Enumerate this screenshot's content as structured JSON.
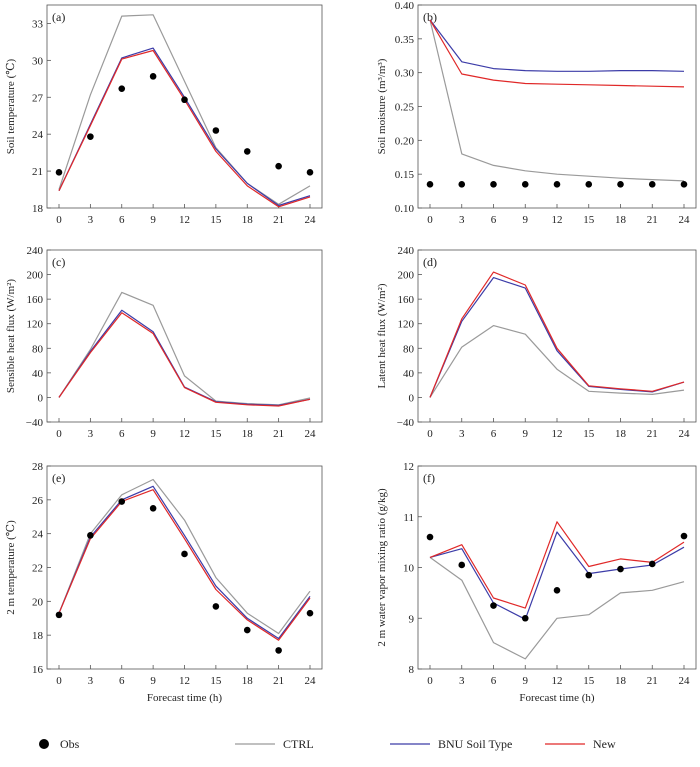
{
  "figure": {
    "xlabel": "Forecast time (h)",
    "legend": [
      {
        "label": "Obs",
        "color": "#000000",
        "kind": "dot"
      },
      {
        "label": "CTRL",
        "color": "#9a9a9a",
        "kind": "line"
      },
      {
        "label": "BNU Soil Type",
        "color": "#3c3ca8",
        "kind": "line"
      },
      {
        "label": "New",
        "color": "#e02828",
        "kind": "line"
      }
    ]
  },
  "chart_data": [
    {
      "type": "line",
      "panel": "(a)",
      "ylabel": "Soil temperature (℃)",
      "x": [
        0,
        3,
        6,
        9,
        12,
        15,
        18,
        21,
        24
      ],
      "xticks": [
        "0",
        "3",
        "6",
        "9",
        "12",
        "15",
        "18",
        "21",
        "24"
      ],
      "ylim": [
        18,
        34.5
      ],
      "yticks": [
        18,
        21,
        24,
        27,
        30,
        33
      ],
      "ytick_labels": [
        "18",
        "21",
        "24",
        "27",
        "30",
        "33"
      ],
      "obs": [
        20.9,
        23.8,
        27.7,
        28.7,
        26.8,
        24.3,
        22.6,
        21.4,
        20.9
      ],
      "series": [
        {
          "name": "CTRL",
          "color": "#9a9a9a",
          "values": [
            19.5,
            27.2,
            33.6,
            33.7,
            28.3,
            22.9,
            20.0,
            18.3,
            19.8
          ]
        },
        {
          "name": "BNU Soil Type",
          "color": "#3c3ca8",
          "values": [
            19.4,
            24.8,
            30.2,
            31.0,
            27.0,
            22.8,
            20.0,
            18.2,
            19.0
          ]
        },
        {
          "name": "New",
          "color": "#e02828",
          "values": [
            19.4,
            24.7,
            30.1,
            30.8,
            26.8,
            22.6,
            19.8,
            18.1,
            18.9
          ]
        }
      ]
    },
    {
      "type": "line",
      "panel": "(b)",
      "ylabel": "Soil moisture (m³/m³)",
      "x": [
        0,
        3,
        6,
        9,
        12,
        15,
        18,
        21,
        24
      ],
      "xticks": [
        "0",
        "3",
        "6",
        "9",
        "12",
        "15",
        "18",
        "21",
        "24"
      ],
      "ylim": [
        0.1,
        0.4
      ],
      "yticks": [
        0.1,
        0.15,
        0.2,
        0.25,
        0.3,
        0.35,
        0.4
      ],
      "ytick_labels": [
        "0.10",
        "0.15",
        "0.20",
        "0.25",
        "0.30",
        "0.35",
        "0.40"
      ],
      "obs": [
        0.135,
        0.135,
        0.135,
        0.135,
        0.135,
        0.135,
        0.135,
        0.135,
        0.135
      ],
      "series": [
        {
          "name": "CTRL",
          "color": "#9a9a9a",
          "values": [
            0.378,
            0.18,
            0.163,
            0.155,
            0.15,
            0.147,
            0.144,
            0.142,
            0.14
          ]
        },
        {
          "name": "BNU Soil Type",
          "color": "#3c3ca8",
          "values": [
            0.378,
            0.316,
            0.306,
            0.303,
            0.302,
            0.302,
            0.303,
            0.303,
            0.302
          ]
        },
        {
          "name": "New",
          "color": "#e02828",
          "values": [
            0.378,
            0.298,
            0.289,
            0.284,
            0.283,
            0.282,
            0.281,
            0.28,
            0.279
          ]
        }
      ]
    },
    {
      "type": "line",
      "panel": "(c)",
      "ylabel": "Sensible heat flux (W/m²)",
      "x": [
        0,
        3,
        6,
        9,
        12,
        15,
        18,
        21,
        24
      ],
      "xticks": [
        "0",
        "3",
        "6",
        "9",
        "12",
        "15",
        "18",
        "21",
        "24"
      ],
      "ylim": [
        -40,
        240
      ],
      "yticks": [
        -40,
        0,
        40,
        80,
        120,
        160,
        200,
        240
      ],
      "ytick_labels": [
        "−40",
        "0",
        "40",
        "80",
        "120",
        "160",
        "200",
        "240"
      ],
      "obs": [],
      "series": [
        {
          "name": "CTRL",
          "color": "#9a9a9a",
          "values": [
            0,
            78,
            171,
            150,
            35,
            -6,
            -10,
            -12,
            -1
          ]
        },
        {
          "name": "BNU Soil Type",
          "color": "#3c3ca8",
          "values": [
            0,
            75,
            142,
            107,
            17,
            -7,
            -11,
            -13,
            -3
          ]
        },
        {
          "name": "New",
          "color": "#e02828",
          "values": [
            0,
            73,
            138,
            104,
            16,
            -8,
            -12,
            -14,
            -3
          ]
        }
      ]
    },
    {
      "type": "line",
      "panel": "(d)",
      "ylabel": "Latent heat flux (W/m²)",
      "x": [
        0,
        3,
        6,
        9,
        12,
        15,
        18,
        21,
        24
      ],
      "xticks": [
        "0",
        "3",
        "6",
        "9",
        "12",
        "15",
        "18",
        "21",
        "24"
      ],
      "ylim": [
        -40,
        240
      ],
      "yticks": [
        -40,
        0,
        40,
        80,
        120,
        160,
        200,
        240
      ],
      "ytick_labels": [
        "−40",
        "0",
        "40",
        "80",
        "120",
        "160",
        "200",
        "240"
      ],
      "obs": [],
      "series": [
        {
          "name": "CTRL",
          "color": "#9a9a9a",
          "values": [
            0,
            82,
            117,
            103,
            46,
            10,
            7,
            5,
            12
          ]
        },
        {
          "name": "BNU Soil Type",
          "color": "#3c3ca8",
          "values": [
            0,
            124,
            195,
            178,
            76,
            18,
            13,
            9,
            25
          ]
        },
        {
          "name": "New",
          "color": "#e02828",
          "values": [
            0,
            128,
            204,
            183,
            80,
            19,
            14,
            10,
            25
          ]
        }
      ]
    },
    {
      "type": "line",
      "panel": "(e)",
      "ylabel": "2 m temperature (℃)",
      "x": [
        0,
        3,
        6,
        9,
        12,
        15,
        18,
        21,
        24
      ],
      "xticks": [
        "0",
        "3",
        "6",
        "9",
        "12",
        "15",
        "18",
        "21",
        "24"
      ],
      "ylim": [
        16,
        28
      ],
      "yticks": [
        16,
        18,
        20,
        22,
        24,
        26,
        28
      ],
      "ytick_labels": [
        "16",
        "18",
        "20",
        "22",
        "24",
        "26",
        "28"
      ],
      "obs": [
        19.2,
        23.9,
        25.9,
        25.5,
        22.8,
        19.7,
        18.3,
        17.1,
        19.3
      ],
      "series": [
        {
          "name": "CTRL",
          "color": "#9a9a9a",
          "values": [
            19.3,
            24.0,
            26.3,
            27.2,
            24.8,
            21.4,
            19.3,
            18.1,
            20.6
          ]
        },
        {
          "name": "BNU Soil Type",
          "color": "#3c3ca8",
          "values": [
            19.3,
            23.8,
            26.0,
            26.8,
            23.9,
            20.9,
            19.0,
            17.8,
            20.3
          ]
        },
        {
          "name": "New",
          "color": "#e02828",
          "values": [
            19.3,
            23.7,
            25.9,
            26.6,
            23.7,
            20.7,
            18.9,
            17.7,
            20.2
          ]
        }
      ]
    },
    {
      "type": "line",
      "panel": "(f)",
      "ylabel": "2 m water vapor mixing ratio (g/kg)",
      "x": [
        0,
        3,
        6,
        9,
        12,
        15,
        18,
        21,
        24
      ],
      "xticks": [
        "0",
        "3",
        "6",
        "9",
        "12",
        "15",
        "18",
        "21",
        "24"
      ],
      "ylim": [
        8,
        12
      ],
      "yticks": [
        8,
        9,
        10,
        11,
        12
      ],
      "ytick_labels": [
        "8",
        "9",
        "10",
        "11",
        "12"
      ],
      "obs": [
        10.6,
        10.05,
        9.25,
        9.0,
        9.55,
        9.85,
        9.97,
        10.07,
        10.62
      ],
      "series": [
        {
          "name": "CTRL",
          "color": "#9a9a9a",
          "values": [
            10.2,
            9.75,
            8.52,
            8.2,
            9.0,
            9.07,
            9.5,
            9.55,
            9.72
          ]
        },
        {
          "name": "BNU Soil Type",
          "color": "#3c3ca8",
          "values": [
            10.2,
            10.37,
            9.3,
            8.98,
            10.7,
            9.88,
            9.97,
            10.05,
            10.4
          ]
        },
        {
          "name": "New",
          "color": "#e02828",
          "values": [
            10.2,
            10.45,
            9.4,
            9.2,
            10.9,
            10.02,
            10.17,
            10.1,
            10.5
          ]
        }
      ]
    }
  ]
}
